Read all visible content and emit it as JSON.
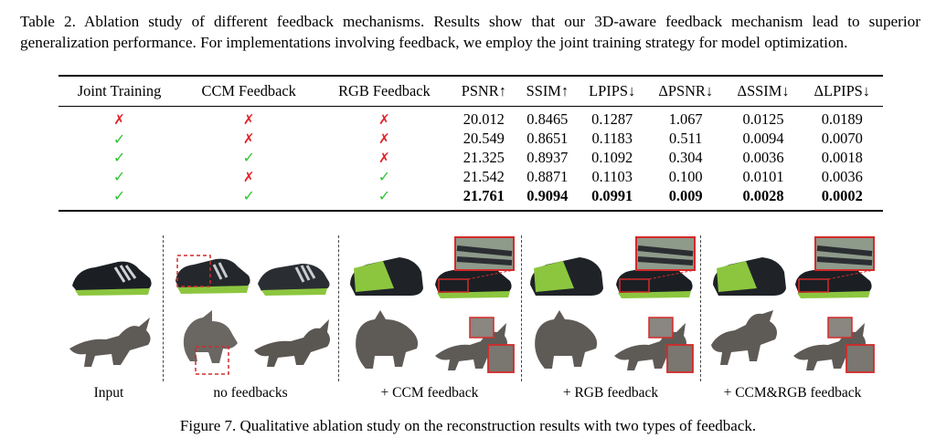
{
  "caption": {
    "table_caption": "Table 2.  Ablation study of different feedback mechanisms.  Results show that our 3D-aware feedback mechanism lead to superior generalization performance. For implementations involving feedback, we employ the joint training strategy for model optimization."
  },
  "table": {
    "headers": [
      "Joint Training",
      "CCM Feedback",
      "RGB Feedback",
      "PSNR↑",
      "SSIM↑",
      "LPIPS↓",
      "ΔPSNR↓",
      "ΔSSIM↓",
      "ΔLPIPS↓"
    ],
    "rows": [
      [
        "✗",
        "✗",
        "✗",
        "20.012",
        "0.8465",
        "0.1287",
        "1.067",
        "0.0125",
        "0.0189"
      ],
      [
        "✓",
        "✗",
        "✗",
        "20.549",
        "0.8651",
        "0.1183",
        "0.511",
        "0.0094",
        "0.0070"
      ],
      [
        "✓",
        "✓",
        "✗",
        "21.325",
        "0.8937",
        "0.1092",
        "0.304",
        "0.0036",
        "0.0018"
      ],
      [
        "✓",
        "✗",
        "✓",
        "21.542",
        "0.8871",
        "0.1103",
        "0.100",
        "0.0101",
        "0.0036"
      ],
      [
        "✓",
        "✓",
        "✓",
        "21.761",
        "0.9094",
        "0.0991",
        "0.009",
        "0.0028",
        "0.0002"
      ]
    ]
  },
  "figure": {
    "labels": [
      "Input",
      "no feedbacks",
      "+ CCM feedback",
      "+ RGB feedback",
      "+ CCM&RGB feedback"
    ],
    "caption": "Figure 7. Qualitative ablation study on the reconstruction results with two types of feedback."
  },
  "colors": {
    "check": "#2ec531",
    "cross": "#e0242b",
    "highlight_box": "#d42a2a",
    "shoe": "#1b1f24",
    "shoe_sole": "#8cc63f",
    "dino": "#5e5b57"
  }
}
